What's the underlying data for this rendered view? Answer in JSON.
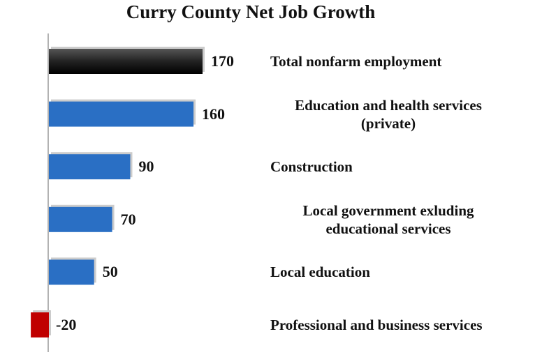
{
  "chart_data": {
    "type": "barh",
    "title": "Curry County Net Job Growth",
    "categories": [
      "Total nonfarm employment",
      "Education and health services (private)",
      "Construction",
      "Local government exluding educational services",
      "Local education",
      "Professional and business services"
    ],
    "values": [
      170,
      160,
      90,
      70,
      50,
      -20
    ],
    "colors": [
      "#1a1a1a",
      "#2a6fc4",
      "#2a6fc4",
      "#2a6fc4",
      "#2a6fc4",
      "#c00000"
    ]
  }
}
